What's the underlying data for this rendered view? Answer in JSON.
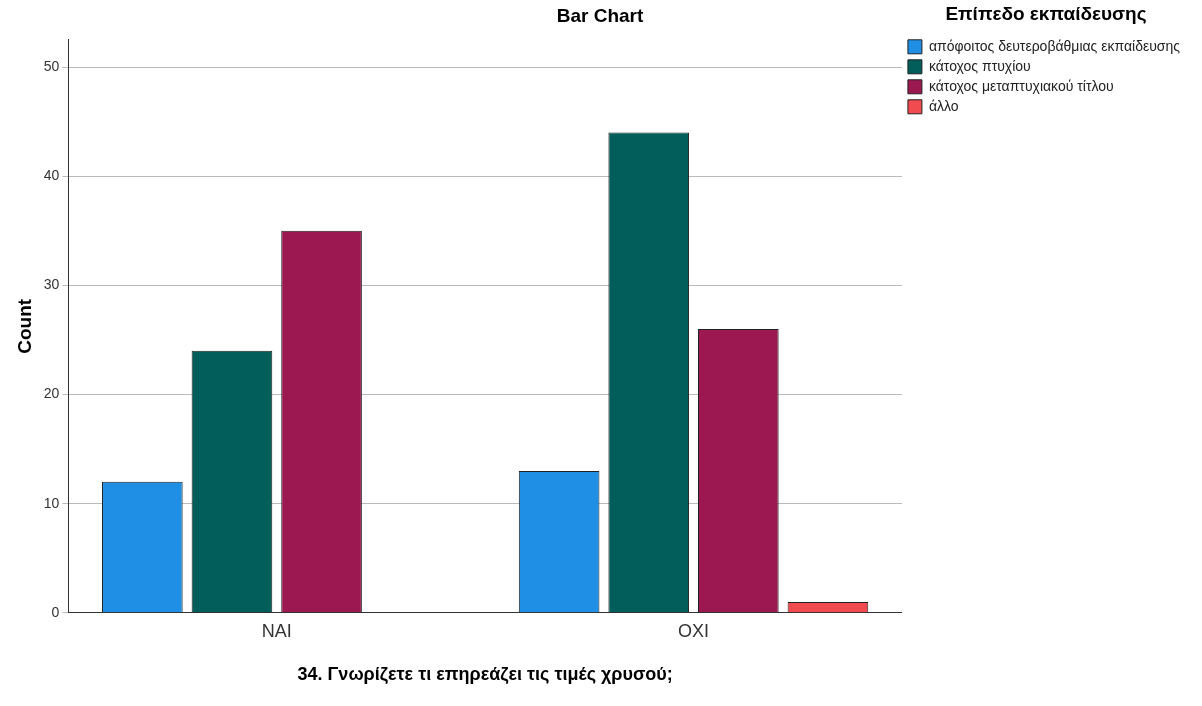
{
  "chart_data": {
    "type": "bar",
    "title": "Bar Chart",
    "xlabel": "34. Γνωρίζετε τι επηρεάζει τις τιμές χρυσού;",
    "ylabel": "Count",
    "legend_title": "Επίπεδο εκπαίδευσης",
    "categories": [
      "ΝΑΙ",
      "ΟΧΙ"
    ],
    "series": [
      {
        "name": "απόφοιτος δευτεροβάθμιας εκπαίδευσης",
        "color": "#1f8fe5",
        "values": [
          12,
          13
        ]
      },
      {
        "name": "κάτοχος πτυχίου",
        "color": "#025e5a",
        "values": [
          24,
          44
        ]
      },
      {
        "name": "κάτοχος μεταπτυχιακού τίτλου",
        "color": "#9c1850",
        "values": [
          35,
          26
        ]
      },
      {
        "name": "άλλο",
        "color": "#f24b4f",
        "values": [
          null,
          1
        ]
      }
    ],
    "ylim": [
      0,
      52.5
    ],
    "yticks": [
      0,
      10,
      20,
      30,
      40,
      50
    ],
    "grid": "y",
    "legend": "top right"
  }
}
